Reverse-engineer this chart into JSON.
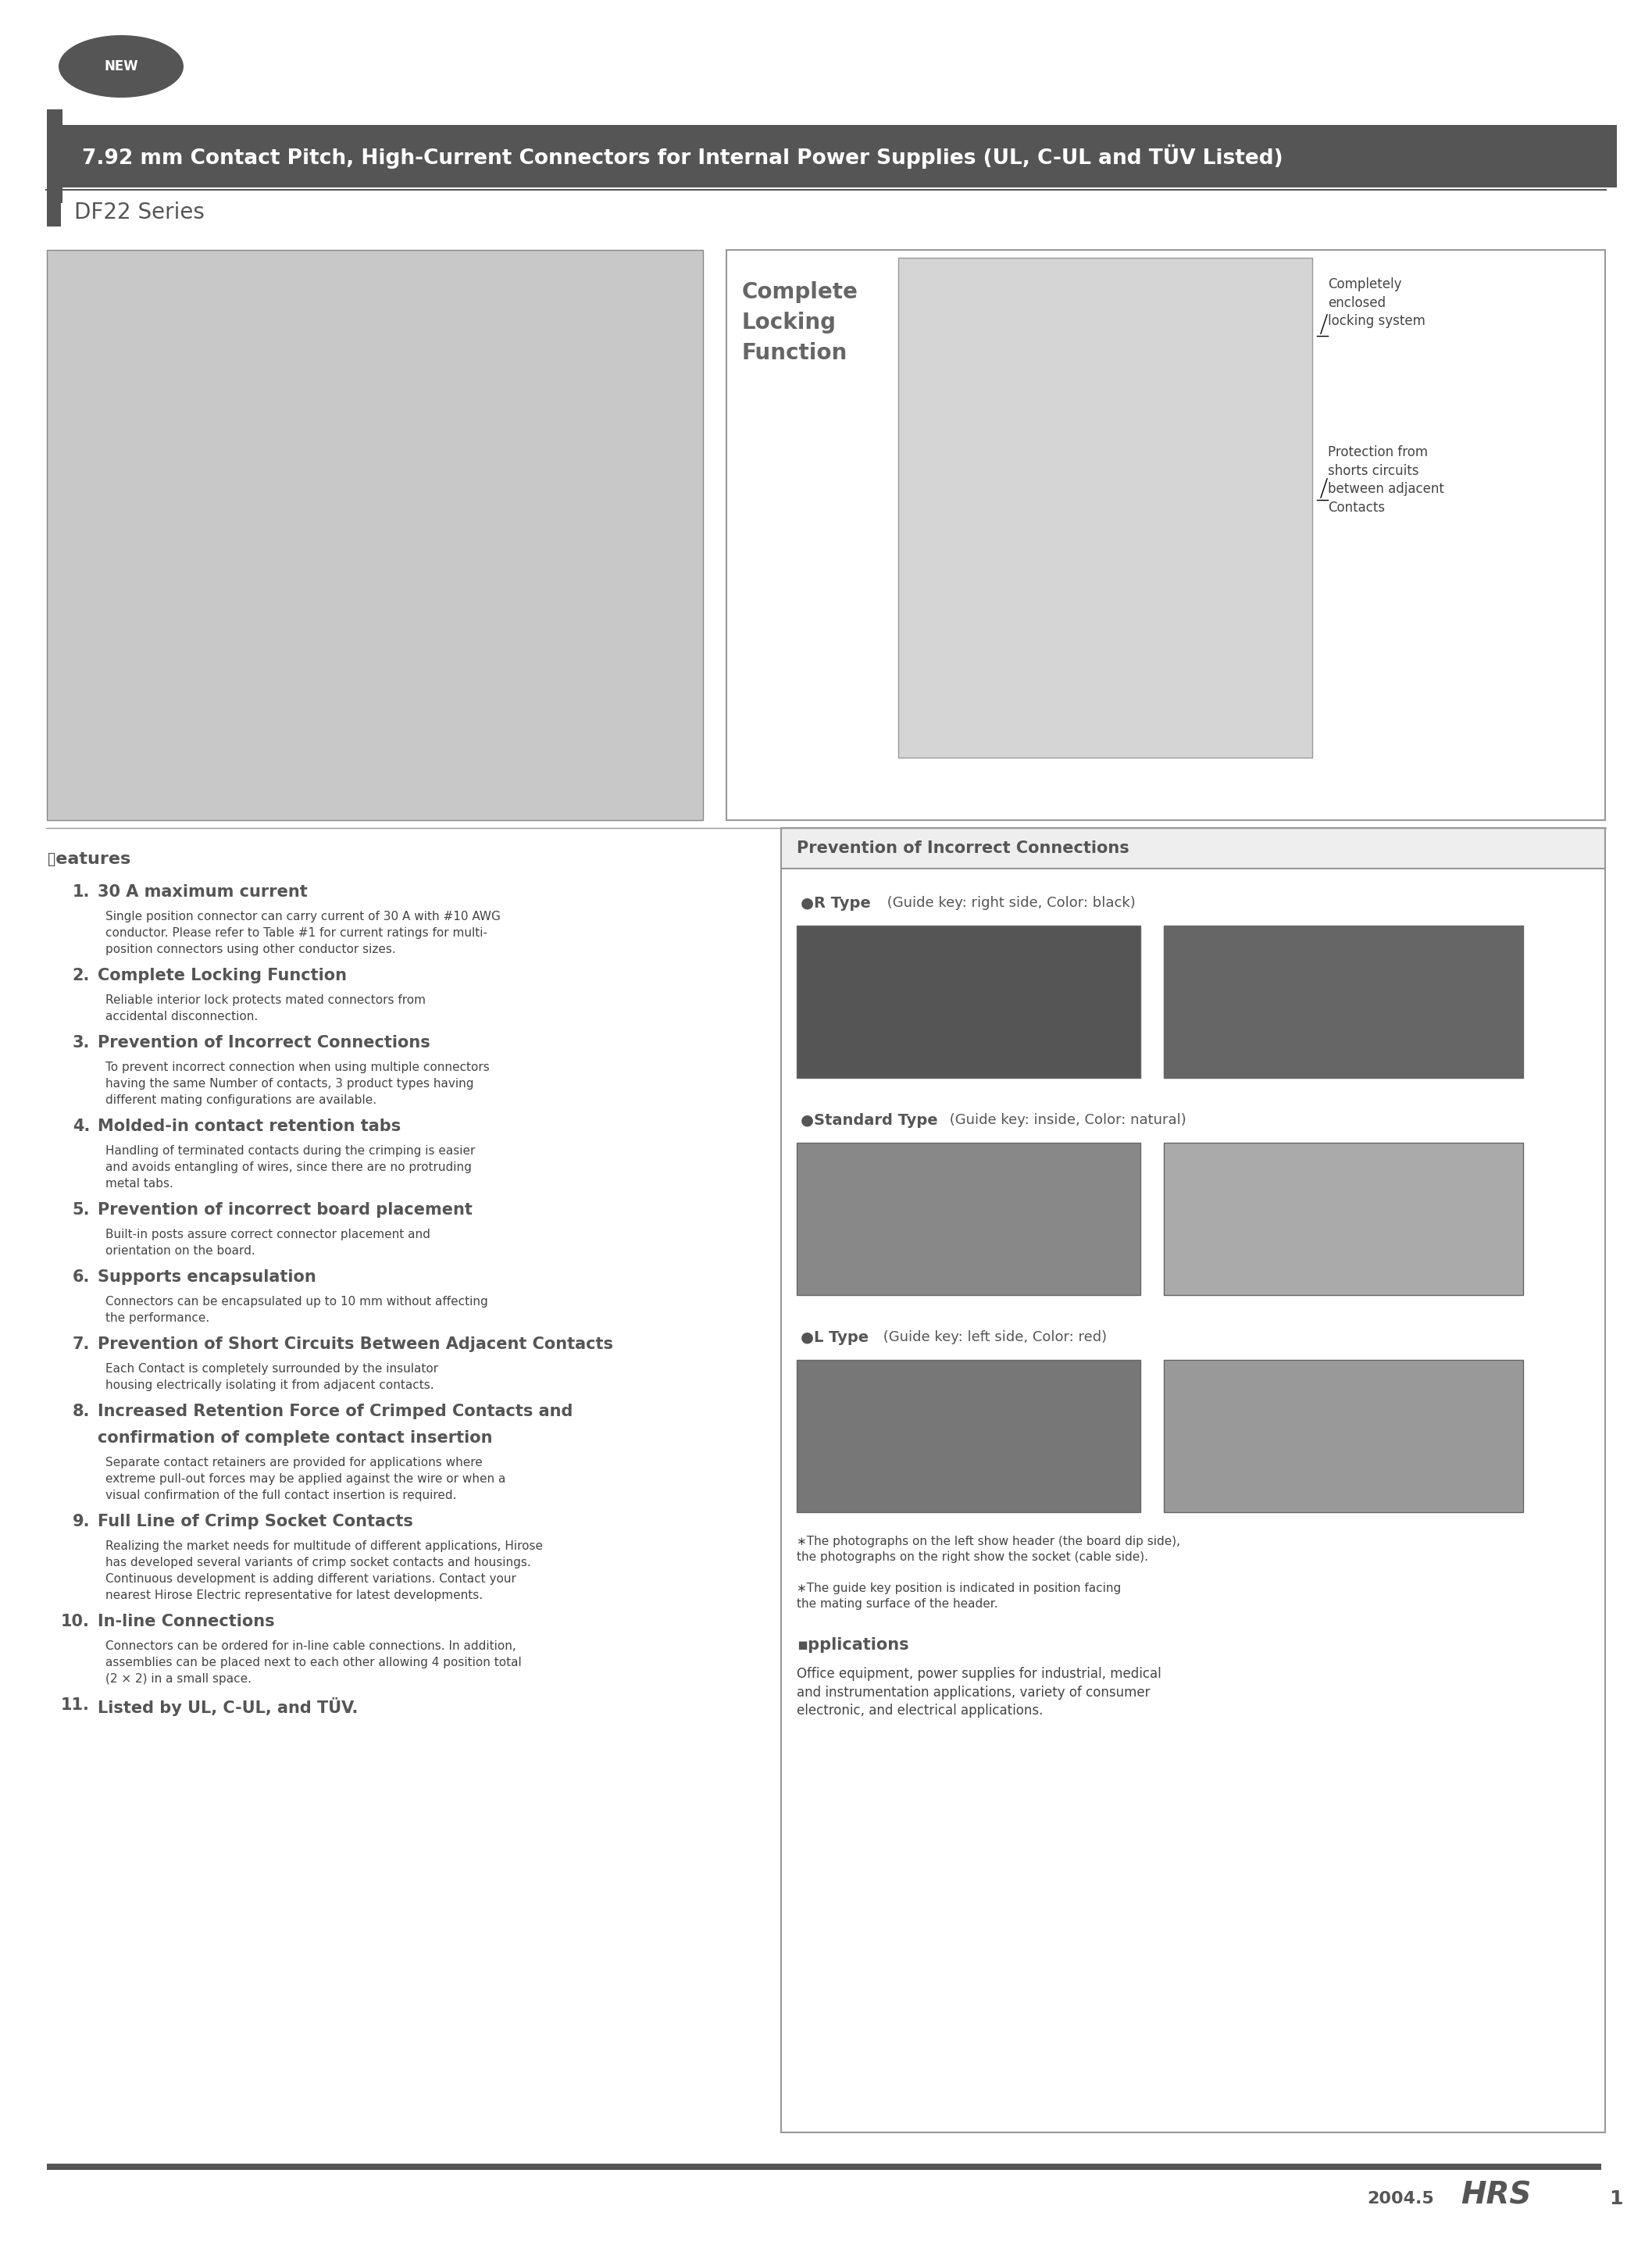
{
  "page_bg": "#ffffff",
  "title_main": "7.92 mm Contact Pitch, High-Current Connectors for Internal Power Supplies (UL, C-UL and TÜV Listed)",
  "title_sub": "DF22 Series",
  "features_title": "▯eatures",
  "features": [
    {
      "num": "1.",
      "heading": "30 A maximum current",
      "body": "Single position connector can carry current of 30 A with #10 AWG\nconductor. Please refer to Table #1 for current ratings for multi-\nposition connectors using other conductor sizes."
    },
    {
      "num": "2.",
      "heading": "Complete Locking Function",
      "body": "Reliable interior lock protects mated connectors from\naccidental disconnection."
    },
    {
      "num": "3.",
      "heading": "Prevention of Incorrect Connections",
      "body": "To prevent incorrect connection when using multiple connectors\nhaving the same Number of contacts, 3 product types having\ndifferent mating configurations are available."
    },
    {
      "num": "4.",
      "heading": "Molded-in contact retention tabs",
      "body": "Handling of terminated contacts during the crimping is easier\nand avoids entangling of wires, since there are no protruding\nmetal tabs."
    },
    {
      "num": "5.",
      "heading": "Prevention of incorrect board placement",
      "body": "Built-in posts assure correct connector placement and\norientation on the board."
    },
    {
      "num": "6.",
      "heading": "Supports encapsulation",
      "body": "Connectors can be encapsulated up to 10 mm without affecting\nthe performance."
    },
    {
      "num": "7.",
      "heading": "Prevention of Short Circuits Between Adjacent Contacts",
      "body": "Each Contact is completely surrounded by the insulator\nhousing electrically isolating it from adjacent contacts."
    },
    {
      "num": "8.",
      "heading": "Increased Retention Force of Crimped Contacts and\nconfirmation of complete contact insertion",
      "body": "Separate contact retainers are provided for applications where\nextreme pull-out forces may be applied against the wire or when a\nvisual confirmation of the full contact insertion is required."
    },
    {
      "num": "9.",
      "heading": "Full Line of Crimp Socket Contacts",
      "body": "Realizing the market needs for multitude of different applications, Hirose\nhas developed several variants of crimp socket contacts and housings.\nContinuous development is adding different variations. Contact your\nnearest Hirose Electric representative for latest developments."
    },
    {
      "num": "10.",
      "heading": "In-line Connections",
      "body": "Connectors can be ordered for in-line cable connections. In addition,\nassemblies can be placed next to each other allowing 4 position total\n(2 × 2) in a small space."
    },
    {
      "num": "11.",
      "heading": "Listed by UL, C-UL, and TÜV.",
      "body": ""
    }
  ],
  "right_top_title": "Complete\nLocking\nFunction",
  "right_top_label1": "Completely\nenclosed\nlocking system",
  "right_top_label2": "Protection from\nshorts circuits\nbetween adjacent\nContacts",
  "prevention_title": "Prevention of Incorrect Connections",
  "r_type_label_bold": "●R Type",
  "r_type_label_normal": " (Guide key: right side, Color: black)",
  "std_type_label_bold": "●Standard Type",
  "std_type_label_normal": " (Guide key: inside, Color: natural)",
  "l_type_label_bold": "●L Type",
  "l_type_label_normal": " (Guide key: left side, Color: red)",
  "footnote1": "∗The photographs on the left show header (the board dip side),\nthe photographs on the right show the socket (cable side).",
  "footnote2": "∗The guide key position is indicated in position facing\nthe mating surface of the header.",
  "applications_title": "▪pplications",
  "applications_body": "Office equipment, power supplies for industrial, medical\nand instrumentation applications, variety of consumer\nelectronic, and electrical applications.",
  "footer_year": "2004.5",
  "footer_page": "1",
  "dark_gray": "#555555",
  "medium_gray": "#666666",
  "body_text": "#444444",
  "border_color": "#999999",
  "photo_bg_dark": "#aaaaaa",
  "photo_bg_light": "#cccccc"
}
